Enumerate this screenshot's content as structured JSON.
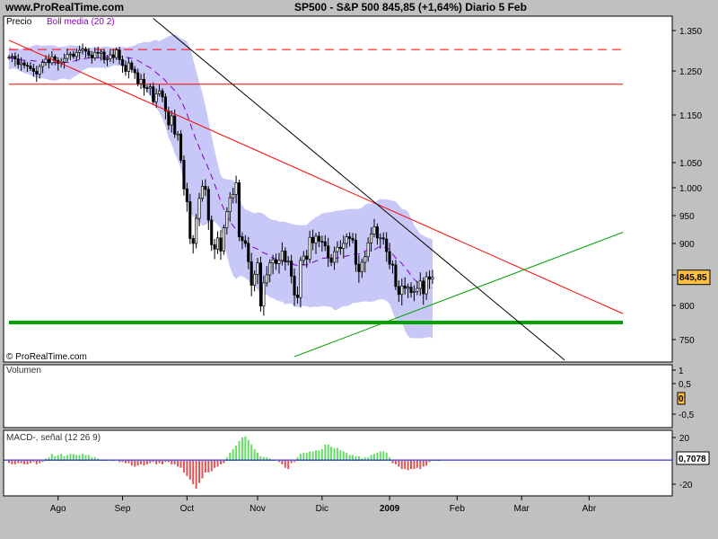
{
  "header": {
    "site": "www.ProRealTime.com",
    "title": "SP500 - S&P 500   845,85 (+1,64%)   Diario  5 Feb"
  },
  "watermark": "© ProRealTime.com",
  "colors": {
    "background": "#ffffff",
    "frame": "#c0c0c0",
    "bollinger": "#c8c8f8",
    "boll_mid": "#8000c0",
    "resistance": "#ff0000",
    "support": "#00a000",
    "price_badge": "#ffc040",
    "macd_pos": "#66dd66",
    "macd_neg": "#dd5555",
    "signal": "#0000cc"
  },
  "chart_data": [
    {
      "type": "candlestick",
      "panel": "price",
      "legend": [
        "Precio",
        "Boll media (20 2)"
      ],
      "ylim": [
        720,
        1380
      ],
      "yticks": [
        750,
        800,
        850,
        900,
        950,
        1000,
        1050,
        1150,
        1250,
        1350
      ],
      "ytick_labels": [
        "750",
        "800",
        "",
        "900",
        "950",
        "1.000",
        "1.050",
        "1.150",
        "1.250",
        "1.350"
      ],
      "last_price_label": "845,85",
      "x_labels": [
        "Ago",
        "Sep",
        "Oct",
        "Nov",
        "Dic",
        "2009",
        "Feb",
        "Mar",
        "Abr"
      ],
      "x_label_idx": [
        16,
        37,
        58,
        81,
        102,
        124,
        146,
        167,
        189
      ],
      "close": [
        1284,
        1286,
        1280,
        1266,
        1270,
        1264,
        1262,
        1256,
        1249,
        1243,
        1261,
        1271,
        1279,
        1270,
        1285,
        1276,
        1269,
        1272,
        1281,
        1291,
        1292,
        1286,
        1296,
        1301,
        1304,
        1299,
        1289,
        1282,
        1296,
        1294,
        1297,
        1278,
        1280,
        1290,
        1283,
        1302,
        1278,
        1264,
        1249,
        1270,
        1254,
        1246,
        1221,
        1231,
        1212,
        1211,
        1214,
        1180,
        1198,
        1205,
        1191,
        1159,
        1129,
        1148,
        1110,
        1110,
        1055,
        998,
        975,
        909,
        900,
        945,
        981,
        1003,
        997,
        942,
        898,
        891,
        910,
        888,
        928,
        957,
        982,
        988,
        1010,
        912,
        905,
        900,
        871,
        833,
        851,
        869,
        799,
        837,
        850,
        869,
        874,
        868,
        873,
        888,
        871,
        872,
        848,
        817,
        813,
        873,
        880,
        875,
        911,
        901,
        913,
        904,
        903,
        896,
        877,
        870,
        887,
        894,
        892,
        900,
        912,
        909,
        906,
        867,
        855,
        870,
        879,
        901,
        917,
        930,
        910,
        910,
        908,
        887,
        867,
        866,
        831,
        818,
        832,
        828,
        830,
        821,
        823,
        828,
        840,
        819,
        847,
        843,
        846
      ],
      "boll_mid": [
        1283,
        1282,
        1280,
        1278,
        1277,
        1276,
        1276,
        1276,
        1275,
        1274,
        1273,
        1272,
        1272,
        1271,
        1271,
        1271,
        1270,
        1271,
        1271,
        1271,
        1272,
        1274,
        1276,
        1278,
        1280,
        1281,
        1282,
        1283,
        1283,
        1283,
        1283,
        1284,
        1284,
        1285,
        1286,
        1286,
        1286,
        1285,
        1284,
        1283,
        1281,
        1279,
        1276,
        1271,
        1266,
        1262,
        1258,
        1253,
        1246,
        1240,
        1235,
        1228,
        1219,
        1213,
        1205,
        1196,
        1184,
        1169,
        1152,
        1133,
        1114,
        1097,
        1082,
        1066,
        1052,
        1038,
        1023,
        1007,
        991,
        975,
        962,
        949,
        939,
        932,
        925,
        916,
        908,
        903,
        900,
        895,
        893,
        891,
        887,
        885,
        883,
        878,
        877,
        875,
        873,
        872,
        871,
        870,
        869,
        866,
        865,
        866,
        866,
        866,
        868,
        870,
        872,
        874,
        876,
        877,
        877,
        877,
        876,
        877,
        878,
        879,
        880,
        881,
        883,
        883,
        883,
        885,
        888,
        889,
        889,
        890,
        893,
        895,
        894,
        893,
        890,
        883,
        877,
        873,
        868,
        862,
        856,
        849,
        843,
        838,
        835,
        832,
        831,
        830,
        829
      ],
      "boll_upper": [
        1310,
        1306,
        1304,
        1305,
        1304,
        1307,
        1309,
        1310,
        1313,
        1315,
        1313,
        1312,
        1313,
        1313,
        1314,
        1313,
        1309,
        1310,
        1310,
        1312,
        1314,
        1313,
        1312,
        1312,
        1309,
        1307,
        1306,
        1308,
        1309,
        1309,
        1309,
        1310,
        1311,
        1309,
        1308,
        1309,
        1309,
        1309,
        1309,
        1309,
        1311,
        1313,
        1318,
        1319,
        1322,
        1321,
        1322,
        1325,
        1327,
        1324,
        1328,
        1331,
        1336,
        1338,
        1341,
        1337,
        1330,
        1328,
        1322,
        1307,
        1279,
        1250,
        1224,
        1200,
        1171,
        1138,
        1106,
        1076,
        1049,
        1024,
        1018,
        1017,
        1016,
        1015,
        1007,
        984,
        968,
        961,
        959,
        956,
        954,
        956,
        955,
        953,
        948,
        944,
        942,
        942,
        939,
        939,
        939,
        937,
        935,
        934,
        933,
        933,
        933,
        933,
        939,
        943,
        947,
        950,
        954,
        955,
        956,
        956,
        958,
        959,
        959,
        960,
        961,
        962,
        962,
        962,
        962,
        964,
        969,
        972,
        972,
        973,
        977,
        980,
        979,
        979,
        978,
        977,
        975,
        969,
        962,
        961,
        957,
        946,
        933,
        925,
        917,
        914,
        911,
        909,
        907
      ],
      "boll_lower": [
        1253,
        1256,
        1256,
        1252,
        1249,
        1245,
        1243,
        1241,
        1237,
        1233,
        1233,
        1233,
        1232,
        1230,
        1228,
        1228,
        1230,
        1232,
        1233,
        1231,
        1230,
        1236,
        1240,
        1244,
        1251,
        1255,
        1258,
        1258,
        1258,
        1258,
        1258,
        1258,
        1257,
        1260,
        1264,
        1264,
        1263,
        1261,
        1259,
        1257,
        1251,
        1245,
        1234,
        1222,
        1211,
        1202,
        1194,
        1180,
        1166,
        1156,
        1142,
        1126,
        1102,
        1089,
        1069,
        1055,
        1038,
        1009,
        982,
        958,
        948,
        944,
        940,
        932,
        933,
        938,
        940,
        939,
        933,
        926,
        906,
        881,
        862,
        849,
        843,
        848,
        848,
        845,
        841,
        834,
        832,
        826,
        818,
        817,
        818,
        813,
        812,
        809,
        807,
        806,
        802,
        803,
        803,
        799,
        797,
        799,
        799,
        799,
        797,
        798,
        798,
        798,
        799,
        799,
        798,
        798,
        793,
        794,
        797,
        799,
        799,
        800,
        804,
        804,
        805,
        806,
        807,
        806,
        806,
        807,
        809,
        810,
        810,
        807,
        803,
        790,
        779,
        777,
        775,
        763,
        755,
        752,
        752,
        752,
        752,
        752,
        753,
        754,
        752
      ],
      "lines": [
        {
          "name": "resistencia-horizontal",
          "style": "dashed",
          "from": [
            0,
            1303
          ],
          "to": [
            200,
            1303
          ]
        },
        {
          "name": "resistencia-horizontal-2",
          "style": "solid",
          "from": [
            0,
            1220
          ],
          "to": [
            200,
            1220
          ]
        },
        {
          "name": "soporte-horizontal",
          "style": "solid-thick",
          "from": [
            0,
            775
          ],
          "to": [
            200,
            775
          ]
        },
        {
          "name": "tendencia-bajista",
          "style": "solid",
          "from": [
            0,
            1326
          ],
          "to": [
            200,
            788
          ]
        },
        {
          "name": "tendencia-bajista-2",
          "style": "solid",
          "from": [
            47,
            1380
          ],
          "to": [
            181,
            720
          ]
        },
        {
          "name": "tendencia-alcista",
          "style": "solid",
          "from": [
            93,
            725
          ],
          "to": [
            200,
            920
          ]
        }
      ]
    },
    {
      "type": "bar",
      "panel": "volume",
      "legend": "Volumen",
      "ylim": [
        -1,
        1
      ],
      "ytick_labels": [
        "1",
        "0,5",
        "-0,5"
      ],
      "last_value_label": "0"
    },
    {
      "type": "bar",
      "panel": "macd",
      "legend": "MACD-, señal (12 26 9)",
      "ylim": [
        -25,
        25
      ],
      "ytick_labels": [
        "20",
        "-20"
      ],
      "last_value_label": "0,7078",
      "signal_value": 0.7078,
      "histogram": [
        -2,
        -3,
        -3,
        -2,
        -2,
        -3,
        -3,
        -2,
        -1,
        -3,
        -2,
        -1,
        2,
        3,
        6,
        4,
        5,
        6,
        4,
        5,
        6,
        6,
        5,
        5,
        6,
        5,
        5,
        3,
        3,
        2,
        1,
        1,
        1,
        0,
        1,
        0,
        -1,
        -1,
        -2,
        -2,
        -4,
        -5,
        -4,
        -3,
        -4,
        -3,
        -2,
        -1,
        -3,
        -2,
        -3,
        -1,
        -1,
        -3,
        -3,
        -5,
        -6,
        -10,
        -13,
        -16,
        -20,
        -24,
        -19,
        -15,
        -10,
        -10,
        -9,
        -6,
        -5,
        -3,
        -2,
        3,
        7,
        10,
        13,
        17,
        20,
        21,
        18,
        14,
        10,
        7,
        4,
        3,
        3,
        2,
        1,
        0,
        -1,
        -3,
        -6,
        -7,
        -2,
        -1,
        3,
        6,
        7,
        7,
        8,
        8,
        9,
        9,
        10,
        14,
        14,
        12,
        11,
        11,
        9,
        8,
        7,
        5,
        5,
        4,
        4,
        2,
        3,
        3,
        5,
        6,
        7,
        8,
        8,
        7,
        3,
        -2,
        -3,
        -5,
        -7,
        -7,
        -8,
        -7,
        -7,
        -6,
        -7,
        -5,
        -4,
        -1,
        1,
        1,
        1,
        0,
        0
      ]
    }
  ]
}
